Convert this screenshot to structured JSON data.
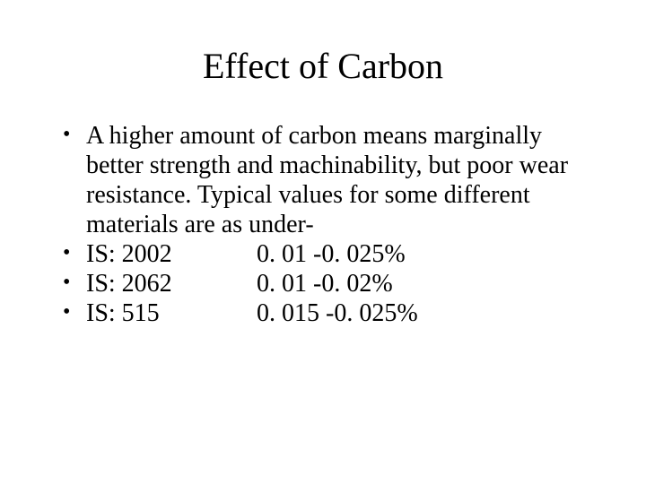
{
  "title": "Effect of Carbon",
  "bullets": {
    "intro": "A higher amount of carbon means marginally better strength and machinability, but poor wear resistance. Typical values for some different materials are as under-",
    "rows": [
      {
        "label": "IS: 2002",
        "value": "0. 01 -0. 025%"
      },
      {
        "label": "IS: 2062",
        "value": "0. 01 -0. 02%"
      },
      {
        "label": "IS: 515",
        "value": "0. 015 -0. 025%"
      }
    ]
  },
  "style": {
    "background_color": "#ffffff",
    "text_color": "#000000",
    "font_family": "Times New Roman",
    "title_fontsize": 40,
    "body_fontsize": 28,
    "slide_width": 720,
    "slide_height": 540
  }
}
